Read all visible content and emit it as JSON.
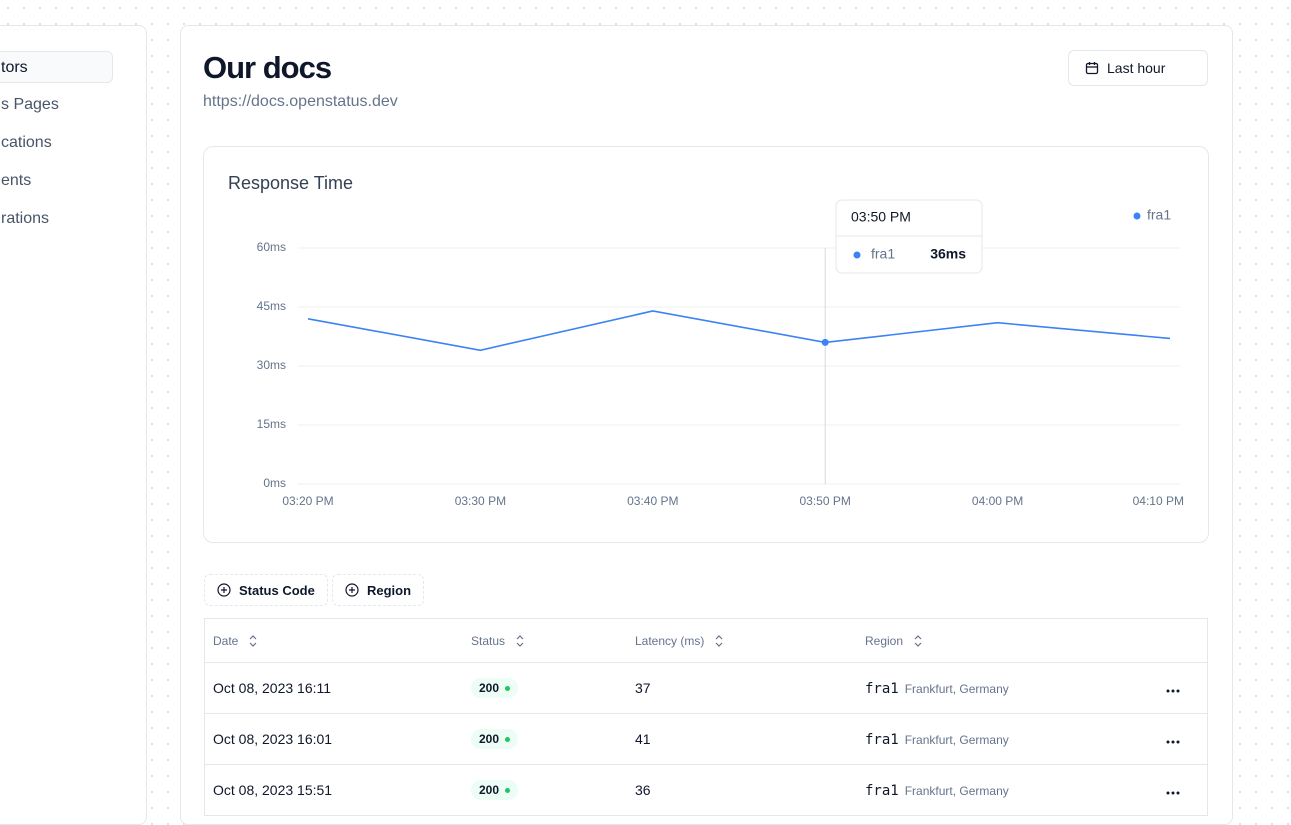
{
  "sidebar": {
    "items": [
      "tors",
      "s Pages",
      "cations",
      "ents",
      "rations"
    ]
  },
  "header": {
    "title": "Our docs",
    "url": "https://docs.openstatus.dev",
    "time_range": "Last hour"
  },
  "chart_data": {
    "type": "line",
    "title": "Response Time",
    "categories": [
      "03:20 PM",
      "03:30 PM",
      "03:40 PM",
      "03:50 PM",
      "04:00 PM",
      "04:10 PM"
    ],
    "series": [
      {
        "name": "fra1",
        "color": "#3b82f6",
        "values": [
          42,
          34,
          44,
          36,
          41,
          37
        ]
      }
    ],
    "ylim": [
      0,
      60
    ],
    "yticks": [
      {
        "value": 0,
        "label": "0ms"
      },
      {
        "value": 15,
        "label": "15ms"
      },
      {
        "value": 30,
        "label": "30ms"
      },
      {
        "value": 45,
        "label": "45ms"
      },
      {
        "value": 60,
        "label": "60ms"
      }
    ],
    "grid": true,
    "legend": "top-right",
    "tooltip": {
      "category": "03:50 PM",
      "value": 36,
      "value_label": "36ms"
    }
  },
  "filters": [
    "Status Code",
    "Region"
  ],
  "table": {
    "columns": [
      "Date",
      "Status",
      "Latency (ms)",
      "Region"
    ],
    "rows": [
      [
        "Oct 08, 2023 16:11",
        "200",
        "37",
        "fra1",
        "Frankfurt, Germany"
      ],
      [
        "Oct 08, 2023 16:01",
        "200",
        "41",
        "fra1",
        "Frankfurt, Germany"
      ],
      [
        "Oct 08, 2023 15:51",
        "200",
        "36",
        "fra1",
        "Frankfurt, Germany"
      ]
    ]
  }
}
